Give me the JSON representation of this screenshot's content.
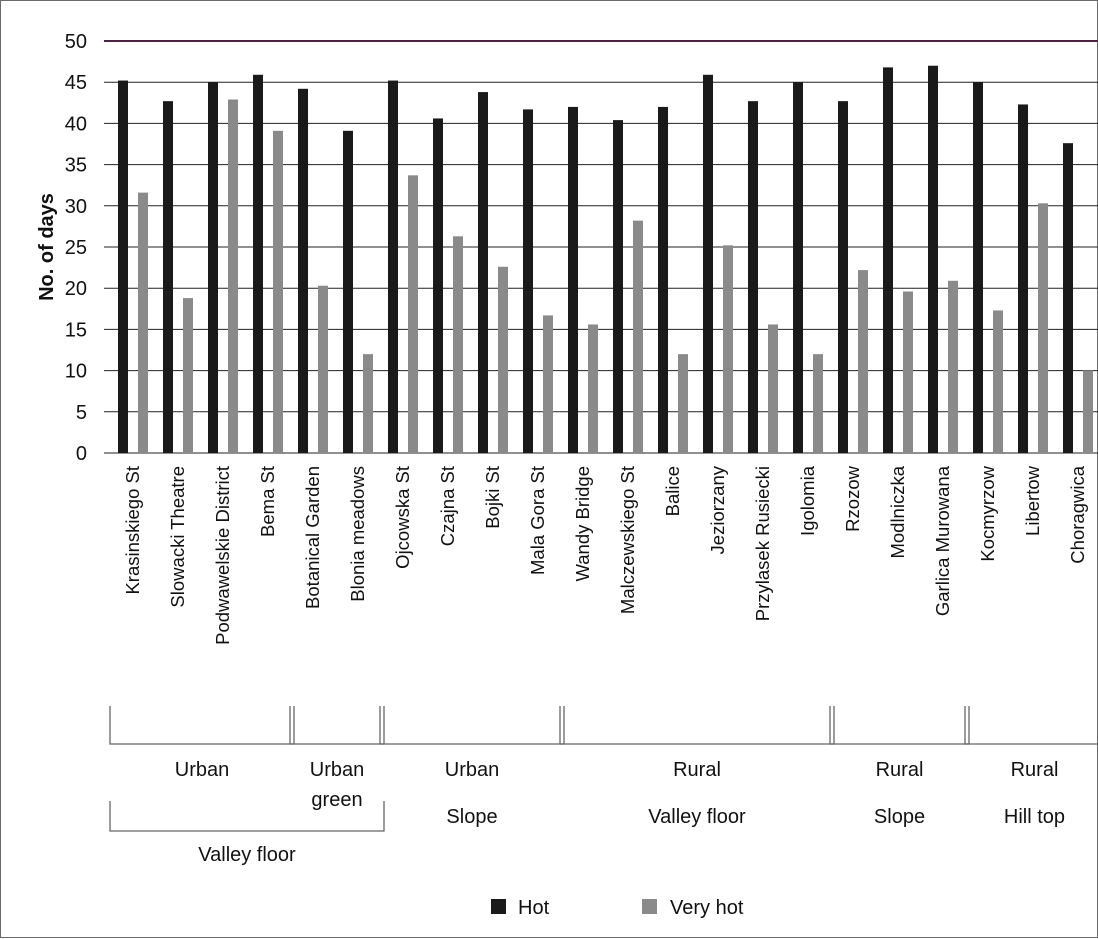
{
  "chart_data": {
    "type": "bar",
    "title": "",
    "xlabel": "",
    "ylabel": "No. of days",
    "ylim": [
      0,
      50
    ],
    "yticks": [
      0,
      5,
      10,
      15,
      20,
      25,
      30,
      35,
      40,
      45,
      50
    ],
    "grid": true,
    "legend_position": "bottom",
    "categories": [
      "Krasinskiego St",
      "Slowacki Theatre",
      "Podwawelskie District",
      "Bema St",
      "Botanical Garden",
      "Blonia meadows",
      "Ojcowska St",
      "Czajna St",
      "Bojki St",
      "Mala Gora St",
      "Wandy Bridge",
      "Malczewskiego St",
      "Balice",
      "Jeziorzany",
      "Przylasek Rusiecki",
      "Igolomia",
      "Rzozow",
      "Modlniczka",
      "Garlica Murowana",
      "Kocmyrzow",
      "Libertow",
      "Choragwica"
    ],
    "series": [
      {
        "name": "Hot",
        "color": "#1a1a1a",
        "values": [
          45.2,
          42.7,
          45.0,
          45.9,
          44.2,
          39.1,
          45.2,
          40.6,
          43.8,
          41.7,
          42.0,
          40.4,
          42.0,
          45.9,
          42.7,
          45.0,
          42.7,
          46.8,
          47.0,
          45.0,
          42.3,
          37.6
        ]
      },
      {
        "name": "Very hot",
        "color": "#8a8a8a",
        "values": [
          31.6,
          18.8,
          42.9,
          39.1,
          20.3,
          12.0,
          33.7,
          26.3,
          22.6,
          16.7,
          15.6,
          28.2,
          12.0,
          25.2,
          15.6,
          12.0,
          22.2,
          19.6,
          20.9,
          17.3,
          30.3,
          10.0
        ]
      }
    ],
    "groups": [
      {
        "top": "Urban",
        "bottom": "Valley floor",
        "top_from": 0,
        "top_to": 3,
        "bottom_from": 0,
        "bottom_to": 5
      },
      {
        "top": "Urban green",
        "bottom": "",
        "top_from": 4,
        "top_to": 5
      },
      {
        "top": "Urban",
        "bottom": "Slope",
        "top_from": 6,
        "top_to": 9
      },
      {
        "top": "Rural",
        "bottom": "Valley floor",
        "top_from": 10,
        "top_to": 15
      },
      {
        "top": "Rural",
        "bottom": "Slope",
        "top_from": 16,
        "top_to": 18
      },
      {
        "top": "Rural",
        "bottom": "Hill top",
        "top_from": 19,
        "top_to": 21
      }
    ]
  },
  "colors": {
    "hot": "#1a1a1a",
    "very_hot": "#8a8a8a",
    "grid": "#222222",
    "top_gridline": "#4b2340",
    "bracket": "#666666"
  }
}
